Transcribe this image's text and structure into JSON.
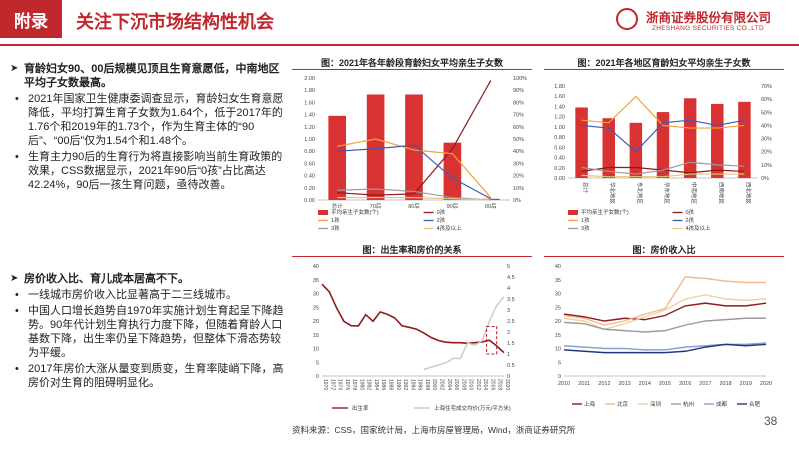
{
  "header": {
    "tag": "附录",
    "title": "关注下沉市场结构性机会",
    "logo_cn": "浙商证券股份有限公司",
    "logo_en": "ZHESHANG SECURITIES CO.,LTD"
  },
  "left": {
    "sec1_head": "育龄妇女90、00后规模见顶且生育意愿低，中南地区平均子女数最高。",
    "sec1_items": [
      "2021年国家卫生健康委调查显示，育龄妇女生育意愿降低，平均打算生育子女数为1.64个，低于2017年的1.76个和2019年的1.73个，作为生育主体的“90后”、“00后”仅为1.54个和1.48个。",
      "生育主力90后的生育行为将直接影响当前生育政策的效果，CSS数据显示，2021年90后“0孩”占比高达42.24%，90后一孩生育问题，亟待改善。"
    ],
    "sec2_head": "房价收入比、育儿成本居高不下。",
    "sec2_items": [
      "一线城市房价收入比显著高于二三线城市。",
      "中国人口增长趋势自1970年实施计划生育起呈下降趋势。90年代计划生育执行力度下降，但随着育龄人口基数下降，出生率仍呈下降趋势，但整体下滑态势较为平缓。",
      "2017年房价大涨从量变到质变，生育率陡峭下降，高房价对生育的阻碍明显化。"
    ]
  },
  "chart_data": [
    {
      "type": "bar",
      "title": "图：2021年各年龄段育龄妇女平均亲生子女数",
      "categories": [
        "总计",
        "70后",
        "80后",
        "90后",
        "00后"
      ],
      "series": [
        {
          "name": "平均亲生子女数(个)",
          "values": [
            1.38,
            1.73,
            1.73,
            0.94,
            0.02
          ]
        },
        {
          "name": "0孩",
          "values": [
            6,
            4,
            5,
            42,
            98
          ]
        },
        {
          "name": "1孩",
          "values": [
            44,
            50,
            41,
            38,
            2
          ]
        },
        {
          "name": "2孩",
          "values": [
            40,
            42,
            45,
            18,
            1
          ]
        },
        {
          "name": "3孩",
          "values": [
            8,
            9,
            7,
            2,
            0
          ]
        },
        {
          "name": "4孩及以上",
          "values": [
            2,
            2,
            2,
            1,
            0
          ]
        }
      ],
      "ylim_left": [
        0,
        2.0
      ],
      "yticks_left": [
        "0.00",
        "0.20",
        "0.40",
        "0.60",
        "0.80",
        "1.00",
        "1.20",
        "1.40",
        "1.60",
        "1.80",
        "2.00"
      ],
      "ylim_right": [
        0,
        100
      ],
      "yticks_right": [
        "0%",
        "10%",
        "20%",
        "30%",
        "40%",
        "50%",
        "60%",
        "70%",
        "80%",
        "90%",
        "100%"
      ]
    },
    {
      "type": "bar",
      "title": "图：2021年各地区育龄妇女平均亲生子女数",
      "categories": [
        "总计",
        "华北地区",
        "东北地区",
        "华东地区",
        "中南地区",
        "西南地区",
        "西北地区"
      ],
      "series": [
        {
          "name": "平均亲生子女数(个)",
          "values": [
            1.38,
            1.17,
            1.08,
            1.29,
            1.56,
            1.45,
            1.49
          ]
        },
        {
          "name": "0孩",
          "values": [
            5,
            8,
            8,
            6,
            4,
            6,
            5
          ]
        },
        {
          "name": "1孩",
          "values": [
            44,
            42,
            62,
            40,
            38,
            38,
            40
          ]
        },
        {
          "name": "2孩",
          "values": [
            40,
            38,
            20,
            42,
            44,
            40,
            44
          ]
        },
        {
          "name": "3孩",
          "values": [
            8,
            5,
            3,
            6,
            12,
            10,
            9
          ]
        },
        {
          "name": "4孩及以上",
          "values": [
            2,
            1,
            1,
            1,
            3,
            3,
            3
          ]
        }
      ],
      "ylim_left": [
        0,
        1.8
      ],
      "yticks_left": [
        "0.00",
        "0.20",
        "0.40",
        "0.60",
        "0.80",
        "1.00",
        "1.20",
        "1.40",
        "1.60",
        "1.80"
      ],
      "ylim_right": [
        0,
        70
      ],
      "yticks_right": [
        "0%",
        "10%",
        "20%",
        "30%",
        "40%",
        "50%",
        "60%",
        "70%"
      ]
    },
    {
      "type": "line",
      "title": "图：出生率和房价的关系",
      "x": [
        "1970",
        "1972",
        "1974",
        "1976",
        "1978",
        "1980",
        "1982",
        "1984",
        "1986",
        "1988",
        "1990",
        "1992",
        "1994",
        "1996",
        "1998",
        "2000",
        "2002",
        "2004",
        "2006",
        "2008",
        "2010",
        "2012",
        "2014",
        "2016",
        "2018",
        "2020"
      ],
      "series": [
        {
          "name": "出生率",
          "values": [
            33.4,
            30.6,
            24.8,
            19.9,
            18.3,
            18.2,
            22.3,
            19.9,
            23.3,
            22.4,
            21.1,
            18.2,
            17.7,
            17.0,
            15.6,
            14.0,
            12.9,
            12.3,
            12.1,
            12.1,
            11.9,
            12.1,
            12.4,
            13.0,
            10.9,
            8.5
          ]
        },
        {
          "name": "上海住宅成交均价(万元/平方米)",
          "values": [
            null,
            null,
            null,
            null,
            null,
            null,
            null,
            null,
            null,
            null,
            null,
            null,
            null,
            null,
            0.3,
            0.4,
            0.5,
            0.6,
            0.8,
            0.8,
            1.5,
            1.4,
            1.6,
            2.5,
            3.2,
            3.6
          ]
        }
      ],
      "yticks_left": [
        "0",
        "5",
        "10",
        "15",
        "20",
        "25",
        "30",
        "35",
        "40"
      ],
      "yticks_right": [
        "0",
        "0.5",
        "1",
        "1.5",
        "2",
        "2.5",
        "3",
        "3.5",
        "4",
        "4.5",
        "5"
      ]
    },
    {
      "type": "line",
      "title": "图：房价收入比",
      "x": [
        "2010",
        "2011",
        "2012",
        "2013",
        "2014",
        "2015",
        "2016",
        "2017",
        "2018",
        "2019",
        "2020"
      ],
      "series": [
        {
          "name": "上海",
          "values": [
            22.5,
            21.5,
            20.0,
            21.0,
            20.5,
            22.0,
            25.5,
            26.5,
            25.5,
            25.5,
            26.5
          ]
        },
        {
          "name": "北京",
          "values": [
            22.0,
            21.0,
            18.5,
            20.0,
            22.5,
            24.5,
            36.0,
            35.5,
            34.5,
            34.0,
            34.0
          ]
        },
        {
          "name": "深圳",
          "values": [
            21.0,
            20.0,
            17.0,
            19.0,
            21.5,
            24.0,
            28.0,
            29.5,
            28.0,
            27.5,
            28.0
          ]
        },
        {
          "name": "杭州",
          "values": [
            19.5,
            19.0,
            17.0,
            16.5,
            16.0,
            16.5,
            18.5,
            20.0,
            20.5,
            21.0,
            21.0
          ]
        },
        {
          "name": "成都",
          "values": [
            11.0,
            10.5,
            10.0,
            10.0,
            9.5,
            9.5,
            10.5,
            11.0,
            11.5,
            11.5,
            12.0
          ]
        },
        {
          "name": "合肥",
          "values": [
            9.5,
            9.0,
            8.5,
            8.5,
            8.5,
            8.5,
            9.0,
            10.5,
            11.5,
            11.0,
            11.5
          ]
        }
      ],
      "yticks": [
        "0",
        "5",
        "10",
        "15",
        "20",
        "25",
        "30",
        "35",
        "40"
      ]
    }
  ],
  "footer": {
    "source": "资料来源：CSS，国家统计局，上海市房屋管理局，Wind，浙商证券研究所",
    "page": "38"
  },
  "colors": {
    "brand": "#c0282d",
    "bar": "#d93232",
    "darkred": "#8e1a1e",
    "orange": "#f2a23a",
    "blue": "#3b5bb5",
    "gray": "#9b9b9b",
    "gold": "#e7c37c",
    "navy": "#1f3a7a"
  },
  "icons": [
    "arrow-bullet-icon",
    "logo-ring-icon"
  ]
}
